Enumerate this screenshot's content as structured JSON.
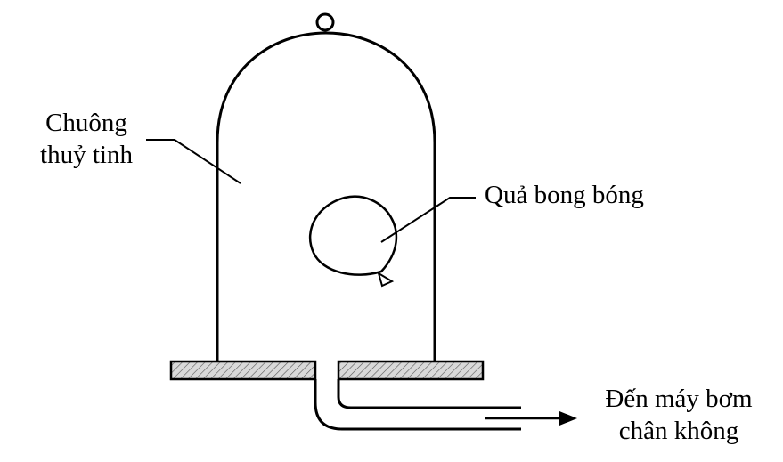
{
  "labels": {
    "bell_jar_line1": "Chuông",
    "bell_jar_line2": "thuỷ tinh",
    "balloon": "Quả bong bóng",
    "pump_line1": "Đến máy bơm",
    "pump_line2": "chân không"
  },
  "colors": {
    "stroke": "#000000",
    "hatch_fill": "#d9d9d9",
    "background": "#ffffff"
  }
}
